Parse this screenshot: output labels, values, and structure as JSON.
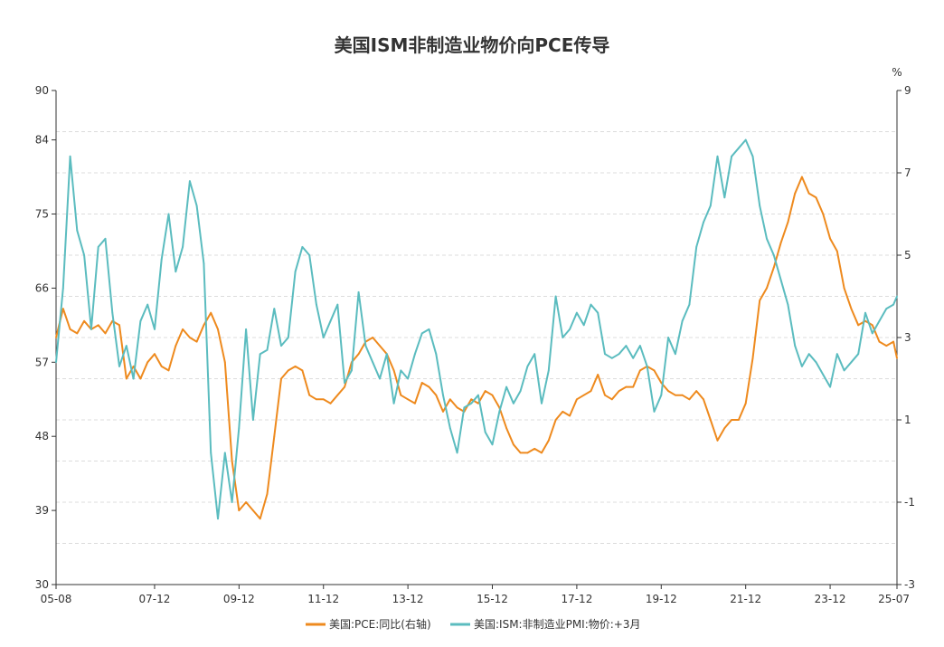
{
  "chart_data": {
    "type": "line",
    "title": "美国ISM非制造业物价向PCE传导",
    "x_ticks": [
      "05-08",
      "07-12",
      "09-12",
      "11-12",
      "13-12",
      "15-12",
      "17-12",
      "19-12",
      "21-12",
      "23-12",
      "25-07"
    ],
    "x_range": [
      "2005-08",
      "2025-07"
    ],
    "y_left": {
      "ticks": [
        "90",
        "84",
        "75",
        "66",
        "57",
        "48",
        "39",
        "30"
      ],
      "range": [
        30,
        90
      ]
    },
    "y_right": {
      "unit": "%",
      "ticks": [
        "9",
        "7",
        "5",
        "3",
        "1",
        "-1",
        "-3"
      ],
      "range": [
        -3,
        9
      ]
    },
    "grid": true,
    "legend_position": "bottom",
    "series": [
      {
        "name": "美国:PCE:同比(右轴)",
        "axis": "right",
        "color": "#ee8a1e",
        "points": [
          [
            "2005-08",
            3.0
          ],
          [
            "2005-10",
            3.7
          ],
          [
            "2005-12",
            3.2
          ],
          [
            "2006-02",
            3.1
          ],
          [
            "2006-04",
            3.4
          ],
          [
            "2006-06",
            3.2
          ],
          [
            "2006-08",
            3.3
          ],
          [
            "2006-10",
            3.1
          ],
          [
            "2006-12",
            3.4
          ],
          [
            "2007-02",
            3.3
          ],
          [
            "2007-04",
            2.0
          ],
          [
            "2007-06",
            2.3
          ],
          [
            "2007-08",
            2.0
          ],
          [
            "2007-10",
            2.4
          ],
          [
            "2007-12",
            2.6
          ],
          [
            "2008-02",
            2.3
          ],
          [
            "2008-04",
            2.2
          ],
          [
            "2008-06",
            2.8
          ],
          [
            "2008-08",
            3.2
          ],
          [
            "2008-10",
            3.0
          ],
          [
            "2008-12",
            2.9
          ],
          [
            "2009-02",
            3.3
          ],
          [
            "2009-04",
            3.6
          ],
          [
            "2009-06",
            3.2
          ],
          [
            "2009-08",
            2.4
          ],
          [
            "2009-10",
            0.0
          ],
          [
            "2009-12",
            -1.2
          ],
          [
            "2010-02",
            -1.0
          ],
          [
            "2010-04",
            -1.2
          ],
          [
            "2010-06",
            -1.4
          ],
          [
            "2010-08",
            -0.8
          ],
          [
            "2010-10",
            0.6
          ],
          [
            "2010-12",
            2.0
          ],
          [
            "2011-02",
            2.2
          ],
          [
            "2011-04",
            2.3
          ],
          [
            "2011-06",
            2.2
          ],
          [
            "2011-08",
            1.6
          ],
          [
            "2011-10",
            1.5
          ],
          [
            "2011-12",
            1.5
          ],
          [
            "2012-02",
            1.4
          ],
          [
            "2012-04",
            1.6
          ],
          [
            "2012-06",
            1.8
          ],
          [
            "2012-08",
            2.4
          ],
          [
            "2012-10",
            2.6
          ],
          [
            "2012-12",
            2.9
          ],
          [
            "2013-02",
            3.0
          ],
          [
            "2013-04",
            2.8
          ],
          [
            "2013-06",
            2.6
          ],
          [
            "2013-08",
            2.2
          ],
          [
            "2013-10",
            1.6
          ],
          [
            "2013-12",
            1.5
          ],
          [
            "2014-02",
            1.4
          ],
          [
            "2014-04",
            1.9
          ],
          [
            "2014-06",
            1.8
          ],
          [
            "2014-08",
            1.6
          ],
          [
            "2014-10",
            1.2
          ],
          [
            "2014-12",
            1.5
          ],
          [
            "2015-02",
            1.3
          ],
          [
            "2015-04",
            1.2
          ],
          [
            "2015-06",
            1.5
          ],
          [
            "2015-08",
            1.4
          ],
          [
            "2015-10",
            1.7
          ],
          [
            "2015-12",
            1.6
          ],
          [
            "2016-02",
            1.3
          ],
          [
            "2016-04",
            0.8
          ],
          [
            "2016-06",
            0.4
          ],
          [
            "2016-08",
            0.2
          ],
          [
            "2016-10",
            0.2
          ],
          [
            "2016-12",
            0.3
          ],
          [
            "2017-02",
            0.2
          ],
          [
            "2017-04",
            0.5
          ],
          [
            "2017-06",
            1.0
          ],
          [
            "2017-08",
            1.2
          ],
          [
            "2017-10",
            1.1
          ],
          [
            "2017-12",
            1.5
          ],
          [
            "2018-02",
            1.6
          ],
          [
            "2018-04",
            1.7
          ],
          [
            "2018-06",
            2.1
          ],
          [
            "2018-08",
            1.6
          ],
          [
            "2018-10",
            1.5
          ],
          [
            "2018-12",
            1.7
          ],
          [
            "2019-02",
            1.8
          ],
          [
            "2019-04",
            1.8
          ],
          [
            "2019-06",
            2.2
          ],
          [
            "2019-08",
            2.3
          ],
          [
            "2019-10",
            2.2
          ],
          [
            "2019-12",
            1.9
          ],
          [
            "2020-02",
            1.7
          ],
          [
            "2020-04",
            1.6
          ],
          [
            "2020-06",
            1.6
          ],
          [
            "2020-08",
            1.5
          ],
          [
            "2020-10",
            1.7
          ],
          [
            "2020-12",
            1.5
          ],
          [
            "2021-02",
            1.0
          ],
          [
            "2021-04",
            0.5
          ],
          [
            "2021-06",
            0.8
          ],
          [
            "2021-08",
            1.0
          ],
          [
            "2021-10",
            1.0
          ],
          [
            "2021-12",
            1.4
          ],
          [
            "2022-02",
            2.5
          ],
          [
            "2022-04",
            3.9
          ],
          [
            "2022-06",
            4.2
          ],
          [
            "2022-08",
            4.7
          ],
          [
            "2022-10",
            5.3
          ],
          [
            "2022-12",
            5.8
          ],
          [
            "2023-02",
            6.5
          ],
          [
            "2023-04",
            6.9
          ],
          [
            "2023-06",
            6.5
          ],
          [
            "2023-08",
            6.4
          ],
          [
            "2023-10",
            6.0
          ],
          [
            "2023-12",
            5.4
          ],
          [
            "2024-02",
            5.1
          ],
          [
            "2024-04",
            4.2
          ],
          [
            "2024-06",
            3.7
          ],
          [
            "2024-08",
            3.3
          ],
          [
            "2024-10",
            3.4
          ],
          [
            "2024-12",
            3.3
          ],
          [
            "2025-02",
            2.9
          ],
          [
            "2025-04",
            2.8
          ],
          [
            "2025-06",
            2.9
          ],
          [
            "2025-07",
            2.5
          ]
        ]
      },
      {
        "name": "美国:ISM:非制造业PMI:物价:+3月",
        "axis": "left",
        "color": "#5bbcbf",
        "points": [
          [
            "2005-08",
            57.0
          ],
          [
            "2005-10",
            66.0
          ],
          [
            "2005-12",
            82.0
          ],
          [
            "2006-02",
            73.0
          ],
          [
            "2006-04",
            70.0
          ],
          [
            "2006-06",
            61.0
          ],
          [
            "2006-08",
            71.0
          ],
          [
            "2006-10",
            72.0
          ],
          [
            "2006-12",
            63.0
          ],
          [
            "2007-02",
            56.5
          ],
          [
            "2007-04",
            59.0
          ],
          [
            "2007-06",
            55.0
          ],
          [
            "2007-08",
            62.0
          ],
          [
            "2007-10",
            64.0
          ],
          [
            "2007-12",
            61.0
          ],
          [
            "2008-02",
            69.5
          ],
          [
            "2008-04",
            75.0
          ],
          [
            "2008-06",
            68.0
          ],
          [
            "2008-08",
            71.0
          ],
          [
            "2008-10",
            79.0
          ],
          [
            "2008-12",
            76.0
          ],
          [
            "2009-02",
            69.0
          ],
          [
            "2009-04",
            46.0
          ],
          [
            "2009-06",
            38.0
          ],
          [
            "2009-08",
            46.0
          ],
          [
            "2009-10",
            40.0
          ],
          [
            "2009-12",
            49.0
          ],
          [
            "2010-02",
            61.0
          ],
          [
            "2010-04",
            50.0
          ],
          [
            "2010-06",
            58.0
          ],
          [
            "2010-08",
            58.5
          ],
          [
            "2010-10",
            63.5
          ],
          [
            "2010-12",
            59.0
          ],
          [
            "2011-02",
            60.0
          ],
          [
            "2011-04",
            68.0
          ],
          [
            "2011-06",
            71.0
          ],
          [
            "2011-08",
            70.0
          ],
          [
            "2011-10",
            64.0
          ],
          [
            "2011-12",
            60.0
          ],
          [
            "2012-02",
            62.0
          ],
          [
            "2012-04",
            64.0
          ],
          [
            "2012-06",
            54.5
          ],
          [
            "2012-08",
            56.0
          ],
          [
            "2012-10",
            65.5
          ],
          [
            "2012-12",
            59.0
          ],
          [
            "2013-02",
            57.0
          ],
          [
            "2013-04",
            55.0
          ],
          [
            "2013-06",
            58.0
          ],
          [
            "2013-08",
            52.0
          ],
          [
            "2013-10",
            56.0
          ],
          [
            "2013-12",
            55.0
          ],
          [
            "2014-02",
            58.0
          ],
          [
            "2014-04",
            60.5
          ],
          [
            "2014-06",
            61.0
          ],
          [
            "2014-08",
            58.0
          ],
          [
            "2014-10",
            53.0
          ],
          [
            "2014-12",
            49.0
          ],
          [
            "2015-02",
            46.0
          ],
          [
            "2015-04",
            51.5
          ],
          [
            "2015-06",
            52.0
          ],
          [
            "2015-08",
            53.0
          ],
          [
            "2015-10",
            48.5
          ],
          [
            "2015-12",
            47.0
          ],
          [
            "2016-02",
            51.0
          ],
          [
            "2016-04",
            54.0
          ],
          [
            "2016-06",
            52.0
          ],
          [
            "2016-08",
            53.5
          ],
          [
            "2016-10",
            56.5
          ],
          [
            "2016-12",
            58.0
          ],
          [
            "2017-02",
            52.0
          ],
          [
            "2017-04",
            56.0
          ],
          [
            "2017-06",
            65.0
          ],
          [
            "2017-08",
            60.0
          ],
          [
            "2017-10",
            61.0
          ],
          [
            "2017-12",
            63.0
          ],
          [
            "2018-02",
            61.5
          ],
          [
            "2018-04",
            64.0
          ],
          [
            "2018-06",
            63.0
          ],
          [
            "2018-08",
            58.0
          ],
          [
            "2018-10",
            57.5
          ],
          [
            "2018-12",
            58.0
          ],
          [
            "2019-02",
            59.0
          ],
          [
            "2019-04",
            57.5
          ],
          [
            "2019-06",
            59.0
          ],
          [
            "2019-08",
            56.5
          ],
          [
            "2019-10",
            51.0
          ],
          [
            "2019-12",
            53.0
          ],
          [
            "2020-02",
            60.0
          ],
          [
            "2020-04",
            58.0
          ],
          [
            "2020-06",
            62.0
          ],
          [
            "2020-08",
            64.0
          ],
          [
            "2020-10",
            71.0
          ],
          [
            "2020-12",
            74.0
          ],
          [
            "2021-02",
            76.0
          ],
          [
            "2021-04",
            82.0
          ],
          [
            "2021-06",
            77.0
          ],
          [
            "2021-08",
            82.0
          ],
          [
            "2021-10",
            83.0
          ],
          [
            "2021-12",
            84.0
          ],
          [
            "2022-02",
            82.0
          ],
          [
            "2022-04",
            76.0
          ],
          [
            "2022-06",
            72.0
          ],
          [
            "2022-08",
            70.0
          ],
          [
            "2022-10",
            67.0
          ],
          [
            "2022-12",
            64.0
          ],
          [
            "2023-02",
            59.0
          ],
          [
            "2023-04",
            56.5
          ],
          [
            "2023-06",
            58.0
          ],
          [
            "2023-08",
            57.0
          ],
          [
            "2023-10",
            55.5
          ],
          [
            "2023-12",
            54.0
          ],
          [
            "2024-02",
            58.0
          ],
          [
            "2024-04",
            56.0
          ],
          [
            "2024-06",
            57.0
          ],
          [
            "2024-08",
            58.0
          ],
          [
            "2024-10",
            63.0
          ],
          [
            "2024-12",
            60.5
          ],
          [
            "2025-02",
            62.0
          ],
          [
            "2025-04",
            63.5
          ],
          [
            "2025-06",
            64.0
          ],
          [
            "2025-07",
            65.0
          ]
        ]
      }
    ]
  }
}
